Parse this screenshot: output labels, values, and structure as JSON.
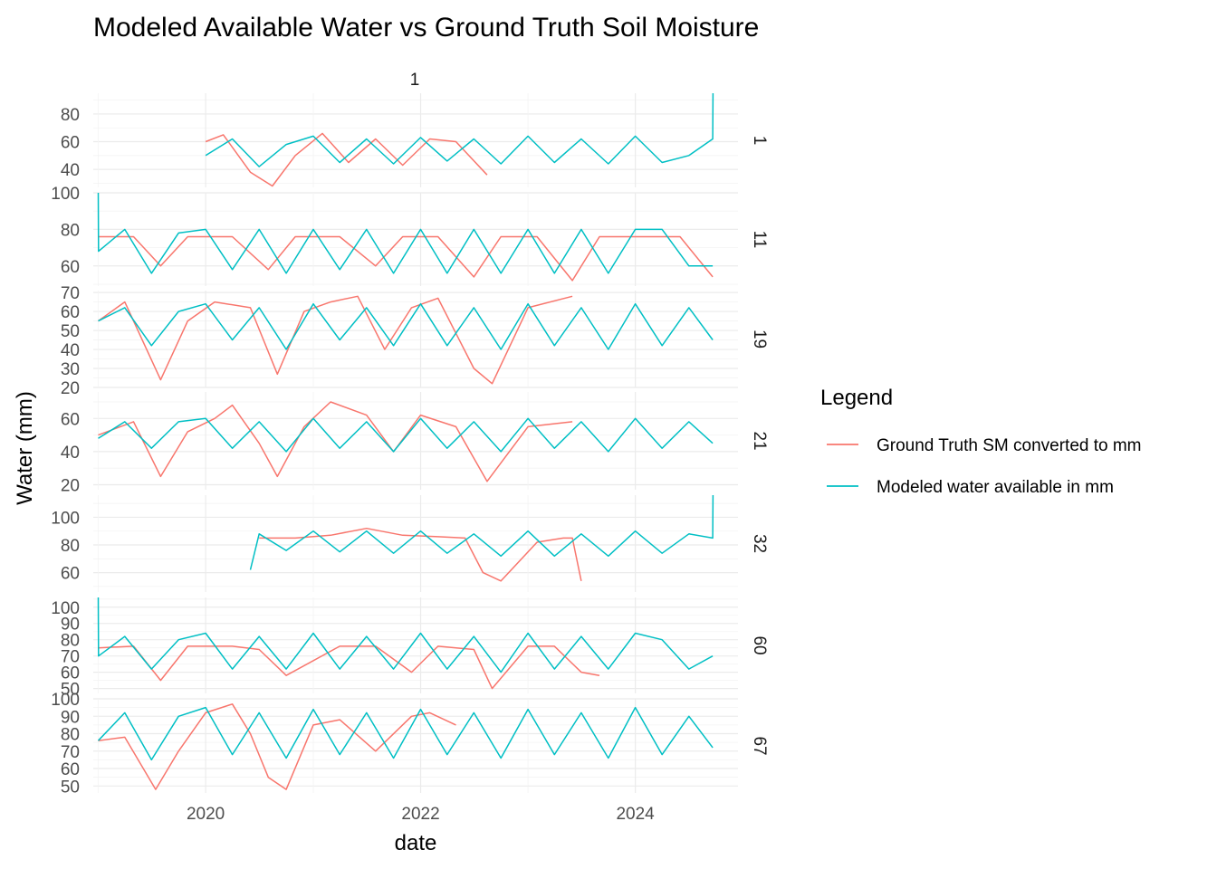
{
  "chart_data": {
    "type": "line",
    "title": "Modeled Available Water vs Ground Truth Soil Moisture",
    "column_strip": "1",
    "xlabel": "date",
    "ylabel": "Water (mm)",
    "x_range": [
      "2018-12-15",
      "2024-12-15"
    ],
    "x_ticks": [
      "2020",
      "2022",
      "2024"
    ],
    "legend": {
      "title": "Legend",
      "placement": "right",
      "entries": [
        {
          "label": "Ground Truth SM converted to mm",
          "color": "#F8766D"
        },
        {
          "label": "Modeled water available in mm",
          "color": "#00BFC4"
        }
      ]
    },
    "grid": true,
    "panels": [
      {
        "strip": "1",
        "ylim": [
          27,
          95
        ],
        "yticks": [
          40,
          60,
          80
        ],
        "series": [
          {
            "name": "Ground Truth SM converted to mm",
            "color": "#F8766D",
            "x": [
              "2020-01-01",
              "2020-03-01",
              "2020-06-01",
              "2020-08-15",
              "2020-11-01",
              "2021-02-01",
              "2021-05-01",
              "2021-08-01",
              "2021-11-01",
              "2022-02-01",
              "2022-05-01",
              "2022-08-15"
            ],
            "y": [
              60,
              65,
              38,
              28,
              50,
              66,
              45,
              62,
              43,
              62,
              60,
              36
            ]
          },
          {
            "name": "Modeled water available in mm",
            "color": "#00BFC4",
            "x": [
              "2020-01-01",
              "2020-04-01",
              "2020-07-01",
              "2020-10-01",
              "2021-01-01",
              "2021-04-01",
              "2021-07-01",
              "2021-10-01",
              "2022-01-01",
              "2022-04-01",
              "2022-07-01",
              "2022-10-01",
              "2023-01-01",
              "2023-04-01",
              "2023-07-01",
              "2023-10-01",
              "2024-01-01",
              "2024-04-01",
              "2024-07-01",
              "2024-09-20",
              "2024-09-21"
            ],
            "y": [
              50,
              62,
              42,
              58,
              64,
              45,
              62,
              44,
              63,
              46,
              62,
              44,
              64,
              45,
              62,
              44,
              64,
              45,
              50,
              62,
              95
            ]
          }
        ]
      },
      {
        "strip": "11",
        "ylim": [
          49,
          100
        ],
        "yticks": [
          60,
          80,
          100
        ],
        "series": [
          {
            "name": "Ground Truth SM converted to mm",
            "color": "#F8766D",
            "x": [
              "2019-01-01",
              "2019-05-01",
              "2019-08-01",
              "2019-11-01",
              "2020-04-01",
              "2020-08-01",
              "2020-11-01",
              "2021-04-01",
              "2021-08-01",
              "2021-11-01",
              "2022-03-01",
              "2022-07-01",
              "2022-10-01",
              "2023-02-01",
              "2023-06-01",
              "2023-09-01",
              "2024-01-01",
              "2024-06-01",
              "2024-09-20"
            ],
            "y": [
              76,
              76,
              60,
              76,
              76,
              58,
              76,
              76,
              60,
              76,
              76,
              54,
              76,
              76,
              52,
              76,
              76,
              76,
              54
            ]
          },
          {
            "name": "Modeled water available in mm",
            "color": "#00BFC4",
            "x": [
              "2019-01-01",
              "2019-01-02",
              "2019-04-01",
              "2019-07-01",
              "2019-10-01",
              "2020-01-01",
              "2020-04-01",
              "2020-07-01",
              "2020-10-01",
              "2021-01-01",
              "2021-04-01",
              "2021-07-01",
              "2021-10-01",
              "2022-01-01",
              "2022-04-01",
              "2022-07-01",
              "2022-10-01",
              "2023-01-01",
              "2023-04-01",
              "2023-07-01",
              "2023-10-01",
              "2024-01-01",
              "2024-04-01",
              "2024-07-01",
              "2024-09-20"
            ],
            "y": [
              100,
              68,
              80,
              56,
              78,
              80,
              58,
              80,
              56,
              80,
              58,
              80,
              56,
              80,
              56,
              80,
              56,
              80,
              56,
              80,
              56,
              80,
              80,
              60,
              60
            ]
          }
        ]
      },
      {
        "strip": "19",
        "ylim": [
          20,
          71
        ],
        "yticks": [
          20,
          30,
          40,
          50,
          60,
          70
        ],
        "series": [
          {
            "name": "Ground Truth SM converted to mm",
            "color": "#F8766D",
            "x": [
              "2019-01-01",
              "2019-04-01",
              "2019-08-01",
              "2019-11-01",
              "2020-02-01",
              "2020-06-01",
              "2020-09-01",
              "2020-12-01",
              "2021-03-01",
              "2021-06-01",
              "2021-09-01",
              "2021-12-01",
              "2022-03-01",
              "2022-07-01",
              "2022-09-01",
              "2023-01-01",
              "2023-06-01"
            ],
            "y": [
              55,
              65,
              24,
              55,
              65,
              62,
              27,
              60,
              65,
              68,
              40,
              62,
              67,
              30,
              22,
              62,
              68
            ]
          },
          {
            "name": "Modeled water available in mm",
            "color": "#00BFC4",
            "x": [
              "2019-01-01",
              "2019-04-01",
              "2019-07-01",
              "2019-10-01",
              "2020-01-01",
              "2020-04-01",
              "2020-07-01",
              "2020-10-01",
              "2021-01-01",
              "2021-04-01",
              "2021-07-01",
              "2021-10-01",
              "2022-01-01",
              "2022-04-01",
              "2022-07-01",
              "2022-10-01",
              "2023-01-01",
              "2023-04-01",
              "2023-07-01",
              "2023-10-01",
              "2024-01-01",
              "2024-04-01",
              "2024-07-01",
              "2024-09-20"
            ],
            "y": [
              55,
              62,
              42,
              60,
              64,
              45,
              62,
              40,
              64,
              45,
              62,
              42,
              64,
              42,
              62,
              40,
              64,
              42,
              62,
              40,
              64,
              42,
              62,
              45
            ]
          }
        ]
      },
      {
        "strip": "21",
        "ylim": [
          17,
          76
        ],
        "yticks": [
          20,
          40,
          60
        ],
        "series": [
          {
            "name": "Ground Truth SM converted to mm",
            "color": "#F8766D",
            "x": [
              "2019-01-01",
              "2019-05-01",
              "2019-08-01",
              "2019-11-01",
              "2020-02-01",
              "2020-04-01",
              "2020-07-01",
              "2020-09-01",
              "2020-12-01",
              "2021-03-01",
              "2021-07-01",
              "2021-10-01",
              "2022-01-01",
              "2022-05-01",
              "2022-08-15",
              "2023-01-01",
              "2023-06-01"
            ],
            "y": [
              50,
              58,
              25,
              52,
              60,
              68,
              45,
              25,
              55,
              70,
              62,
              40,
              62,
              55,
              22,
              55,
              58
            ]
          },
          {
            "name": "Modeled water available in mm",
            "color": "#00BFC4",
            "x": [
              "2019-01-01",
              "2019-04-01",
              "2019-07-01",
              "2019-10-01",
              "2020-01-01",
              "2020-04-01",
              "2020-07-01",
              "2020-10-01",
              "2021-01-01",
              "2021-04-01",
              "2021-07-01",
              "2021-10-01",
              "2022-01-01",
              "2022-04-01",
              "2022-07-01",
              "2022-10-01",
              "2023-01-01",
              "2023-04-01",
              "2023-07-01",
              "2023-10-01",
              "2024-01-01",
              "2024-04-01",
              "2024-07-01",
              "2024-09-20"
            ],
            "y": [
              48,
              58,
              42,
              58,
              60,
              42,
              58,
              40,
              60,
              42,
              58,
              40,
              60,
              42,
              58,
              40,
              60,
              42,
              58,
              40,
              60,
              42,
              58,
              45
            ]
          }
        ]
      },
      {
        "strip": "32",
        "ylim": [
          46,
          116
        ],
        "yticks": [
          60,
          80,
          100
        ],
        "series": [
          {
            "name": "Ground Truth SM converted to mm",
            "color": "#F8766D",
            "x": [
              "2020-07-01",
              "2020-11-01",
              "2021-03-01",
              "2021-07-01",
              "2021-11-01",
              "2022-03-01",
              "2022-06-01",
              "2022-08-01",
              "2022-10-01",
              "2023-02-01",
              "2023-05-01",
              "2023-06-01",
              "2023-07-01"
            ],
            "y": [
              85,
              85,
              87,
              92,
              87,
              86,
              85,
              60,
              54,
              82,
              85,
              85,
              54
            ]
          },
          {
            "name": "Modeled water available in mm",
            "color": "#00BFC4",
            "x": [
              "2020-06-01",
              "2020-07-01",
              "2020-10-01",
              "2021-01-01",
              "2021-04-01",
              "2021-07-01",
              "2021-10-01",
              "2022-01-01",
              "2022-04-01",
              "2022-07-01",
              "2022-10-01",
              "2023-01-01",
              "2023-04-01",
              "2023-07-01",
              "2023-10-01",
              "2024-01-01",
              "2024-04-01",
              "2024-07-01",
              "2024-09-20",
              "2024-09-21"
            ],
            "y": [
              62,
              88,
              76,
              90,
              75,
              90,
              74,
              90,
              74,
              88,
              72,
              90,
              72,
              88,
              72,
              90,
              74,
              88,
              85,
              116
            ]
          }
        ]
      },
      {
        "strip": "60",
        "ylim": [
          47,
          106
        ],
        "yticks": [
          50,
          60,
          70,
          80,
          90,
          100
        ],
        "series": [
          {
            "name": "Ground Truth SM converted to mm",
            "color": "#F8766D",
            "x": [
              "2019-01-01",
              "2019-05-01",
              "2019-08-01",
              "2019-11-01",
              "2020-04-01",
              "2020-07-01",
              "2020-10-01",
              "2021-04-01",
              "2021-08-01",
              "2021-12-01",
              "2022-03-01",
              "2022-07-01",
              "2022-09-01",
              "2023-01-01",
              "2023-04-01",
              "2023-07-01",
              "2023-09-01"
            ],
            "y": [
              75,
              76,
              55,
              76,
              76,
              74,
              58,
              76,
              76,
              60,
              76,
              74,
              50,
              76,
              76,
              60,
              58
            ]
          },
          {
            "name": "Modeled water available in mm",
            "color": "#00BFC4",
            "x": [
              "2019-01-01",
              "2019-01-02",
              "2019-04-01",
              "2019-07-01",
              "2019-10-01",
              "2020-01-01",
              "2020-04-01",
              "2020-07-01",
              "2020-10-01",
              "2021-01-01",
              "2021-04-01",
              "2021-07-01",
              "2021-10-01",
              "2022-01-01",
              "2022-04-01",
              "2022-07-01",
              "2022-10-01",
              "2023-01-01",
              "2023-04-01",
              "2023-07-01",
              "2023-10-01",
              "2024-01-01",
              "2024-04-01",
              "2024-07-01",
              "2024-09-20"
            ],
            "y": [
              106,
              70,
              82,
              62,
              80,
              84,
              62,
              82,
              62,
              84,
              62,
              82,
              62,
              84,
              62,
              82,
              60,
              84,
              62,
              82,
              62,
              84,
              80,
              62,
              70
            ]
          }
        ]
      },
      {
        "strip": "67",
        "ylim": [
          46,
          100
        ],
        "yticks": [
          50,
          60,
          70,
          80,
          90,
          100
        ],
        "series": [
          {
            "name": "Ground Truth SM converted to mm",
            "color": "#F8766D",
            "x": [
              "2019-01-01",
              "2019-04-01",
              "2019-07-15",
              "2019-10-01",
              "2020-01-01",
              "2020-04-01",
              "2020-06-01",
              "2020-08-01",
              "2020-10-01",
              "2021-01-01",
              "2021-04-01",
              "2021-08-01",
              "2021-12-01",
              "2022-02-01",
              "2022-05-01"
            ],
            "y": [
              76,
              78,
              48,
              70,
              92,
              97,
              80,
              55,
              48,
              85,
              88,
              70,
              90,
              92,
              85
            ]
          },
          {
            "name": "Modeled water available in mm",
            "color": "#00BFC4",
            "x": [
              "2019-01-01",
              "2019-04-01",
              "2019-07-01",
              "2019-10-01",
              "2020-01-01",
              "2020-04-01",
              "2020-07-01",
              "2020-10-01",
              "2021-01-01",
              "2021-04-01",
              "2021-07-01",
              "2021-10-01",
              "2022-01-01",
              "2022-04-01",
              "2022-07-01",
              "2022-10-01",
              "2023-01-01",
              "2023-04-01",
              "2023-07-01",
              "2023-10-01",
              "2024-01-01",
              "2024-04-01",
              "2024-07-01",
              "2024-09-20"
            ],
            "y": [
              76,
              92,
              65,
              90,
              95,
              68,
              92,
              66,
              94,
              68,
              92,
              66,
              94,
              68,
              92,
              66,
              94,
              68,
              92,
              66,
              95,
              68,
              90,
              72
            ]
          }
        ]
      }
    ]
  }
}
